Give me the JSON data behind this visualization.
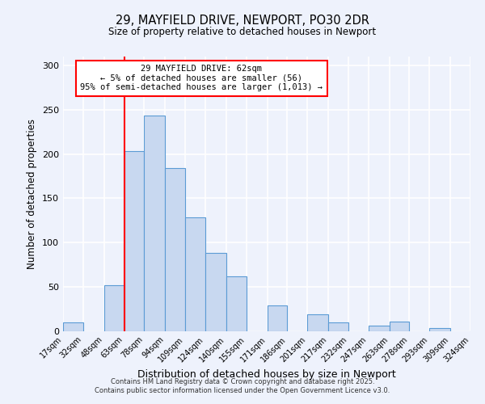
{
  "title": "29, MAYFIELD DRIVE, NEWPORT, PO30 2DR",
  "subtitle": "Size of property relative to detached houses in Newport",
  "xlabel": "Distribution of detached houses by size in Newport",
  "ylabel": "Number of detached properties",
  "bar_color": "#c8d8f0",
  "bar_edge_color": "#5b9bd5",
  "bins": [
    17,
    32,
    48,
    63,
    78,
    94,
    109,
    124,
    140,
    155,
    171,
    186,
    201,
    217,
    232,
    247,
    263,
    278,
    293,
    309,
    324
  ],
  "counts": [
    10,
    0,
    52,
    203,
    243,
    184,
    129,
    88,
    62,
    0,
    29,
    0,
    19,
    10,
    0,
    6,
    11,
    0,
    4,
    0
  ],
  "tick_labels": [
    "17sqm",
    "32sqm",
    "48sqm",
    "63sqm",
    "78sqm",
    "94sqm",
    "109sqm",
    "124sqm",
    "140sqm",
    "155sqm",
    "171sqm",
    "186sqm",
    "201sqm",
    "217sqm",
    "232sqm",
    "247sqm",
    "263sqm",
    "278sqm",
    "293sqm",
    "309sqm",
    "324sqm"
  ],
  "ylim": [
    0,
    310
  ],
  "yticks": [
    0,
    50,
    100,
    150,
    200,
    250,
    300
  ],
  "vline_x": 63,
  "annotation_title": "29 MAYFIELD DRIVE: 62sqm",
  "annotation_line1": "← 5% of detached houses are smaller (56)",
  "annotation_line2": "95% of semi-detached houses are larger (1,013) →",
  "annotation_box_color": "white",
  "annotation_box_edge_color": "red",
  "vline_color": "red",
  "footer1": "Contains HM Land Registry data © Crown copyright and database right 2025.",
  "footer2": "Contains public sector information licensed under the Open Government Licence v3.0.",
  "background_color": "#eef2fc"
}
